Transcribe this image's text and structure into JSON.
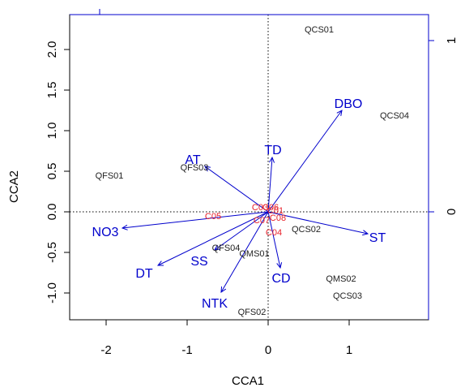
{
  "chart_data": {
    "type": "scatter",
    "title": "",
    "xlabel": "CCA1",
    "ylabel": "CCA2",
    "xlim": [
      -2.45,
      1.98
    ],
    "ylim": [
      -1.33,
      2.43
    ],
    "x_ticks": [
      -2,
      -1,
      0,
      1
    ],
    "y_ticks": [
      -1.0,
      -0.5,
      0.0,
      0.5,
      1.0,
      1.5,
      2.0
    ],
    "y_tick_labels": [
      "-1.0",
      "-0.5",
      "0.0",
      "0.5",
      "1.0",
      "1.5",
      "2.0"
    ],
    "x_tick_labels": [
      "-2",
      "-1",
      "0",
      "1"
    ],
    "secondary_axis_top_ticks": [
      0.0
    ],
    "secondary_axis_right_ticks": [
      0,
      1
    ],
    "secondary_axis_right_tick_labels": [
      "0",
      "1"
    ],
    "reference_lines": {
      "x": 0,
      "y": 0,
      "style": "dotted"
    },
    "sites": [
      {
        "label": "QCS01",
        "x": 0.63,
        "y": 2.25
      },
      {
        "label": "QCS04",
        "x": 1.56,
        "y": 1.19
      },
      {
        "label": "QFS01",
        "x": -1.96,
        "y": 0.45
      },
      {
        "label": "QFS03",
        "x": -0.91,
        "y": 0.55
      },
      {
        "label": "QCS02",
        "x": 0.47,
        "y": -0.21
      },
      {
        "label": "QFS04",
        "x": -0.52,
        "y": -0.44
      },
      {
        "label": "QMS01",
        "x": -0.17,
        "y": -0.51
      },
      {
        "label": "QMS02",
        "x": 0.9,
        "y": -0.82
      },
      {
        "label": "QCS03",
        "x": 0.98,
        "y": -1.03
      },
      {
        "label": "QFS02",
        "x": -0.2,
        "y": -1.23
      }
    ],
    "species": [
      {
        "label": "C05",
        "x": -0.68,
        "y": -0.05
      },
      {
        "label": "C04",
        "x": 0.07,
        "y": -0.25
      },
      {
        "label": "C08",
        "x": 0.12,
        "y": -0.07
      },
      {
        "label": "C03",
        "x": -0.1,
        "y": 0.06
      },
      {
        "label": "C06",
        "x": 0.03,
        "y": 0.06
      },
      {
        "label": "C07",
        "x": -0.08,
        "y": -0.1
      },
      {
        "label": "C01",
        "x": 0.09,
        "y": 0.02
      }
    ],
    "arrows": [
      {
        "label": "DBO",
        "x": 0.91,
        "y": 1.25,
        "label_x": 0.99,
        "label_y": 1.34
      },
      {
        "label": "TD",
        "x": 0.05,
        "y": 0.67,
        "label_x": 0.06,
        "label_y": 0.77
      },
      {
        "label": "AT",
        "x": -0.78,
        "y": 0.56,
        "label_x": -0.93,
        "label_y": 0.65
      },
      {
        "label": "NO3",
        "x": -1.8,
        "y": -0.2,
        "label_x": -2.01,
        "label_y": -0.24
      },
      {
        "label": "ST",
        "x": 1.23,
        "y": -0.27,
        "label_x": 1.35,
        "label_y": -0.31
      },
      {
        "label": "SS",
        "x": -0.66,
        "y": -0.47,
        "label_x": -0.85,
        "label_y": -0.6
      },
      {
        "label": "DT",
        "x": -1.36,
        "y": -0.66,
        "label_x": -1.53,
        "label_y": -0.75
      },
      {
        "label": "CD",
        "x": 0.15,
        "y": -0.69,
        "label_x": 0.16,
        "label_y": -0.81
      },
      {
        "label": "NTK",
        "x": -0.58,
        "y": -0.99,
        "label_x": -0.66,
        "label_y": -1.12
      }
    ],
    "colors": {
      "site": "#222222",
      "species": "#e8202a",
      "biplot": "#0000cc",
      "frame": "#000000",
      "secondary_axis": "#0000cc"
    }
  }
}
